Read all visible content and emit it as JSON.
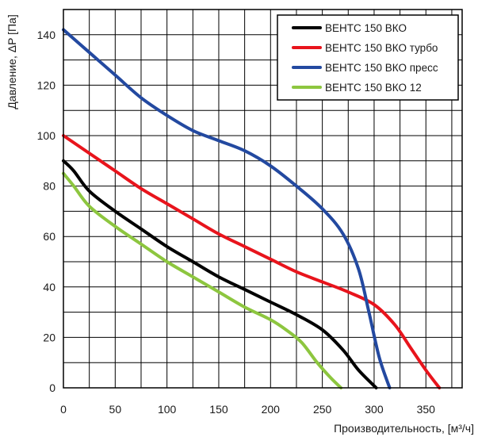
{
  "chart_data": {
    "type": "line",
    "xlabel": "Производительность, [м³/ч]",
    "ylabel": "Давление, ΔP [Па]",
    "xlim": [
      0,
      385
    ],
    "ylim": [
      0,
      150
    ],
    "xticks": [
      0,
      50,
      100,
      150,
      200,
      250,
      300,
      350
    ],
    "yticks": [
      0,
      20,
      40,
      60,
      80,
      100,
      120,
      140
    ],
    "x_grid_step": 25,
    "y_grid_step": 10,
    "grid": true,
    "legend_position": "top-right",
    "series": [
      {
        "name": "ВЕНТС 150 ВКО",
        "color": "#000000",
        "points": [
          [
            0,
            90
          ],
          [
            10,
            86
          ],
          [
            25,
            78
          ],
          [
            50,
            70
          ],
          [
            75,
            63
          ],
          [
            100,
            56
          ],
          [
            125,
            50
          ],
          [
            150,
            44
          ],
          [
            175,
            39
          ],
          [
            200,
            34
          ],
          [
            225,
            29
          ],
          [
            250,
            23
          ],
          [
            270,
            15
          ],
          [
            285,
            7
          ],
          [
            302,
            0
          ]
        ]
      },
      {
        "name": "ВЕНТС 150 ВКО турбо",
        "color": "#e8141c",
        "points": [
          [
            0,
            100
          ],
          [
            25,
            93
          ],
          [
            50,
            86
          ],
          [
            75,
            79
          ],
          [
            100,
            73
          ],
          [
            125,
            67
          ],
          [
            150,
            61
          ],
          [
            175,
            56
          ],
          [
            200,
            51
          ],
          [
            225,
            46
          ],
          [
            250,
            42
          ],
          [
            275,
            38
          ],
          [
            300,
            33
          ],
          [
            320,
            25
          ],
          [
            335,
            16
          ],
          [
            350,
            7
          ],
          [
            363,
            0
          ]
        ]
      },
      {
        "name": "ВЕНТС 150 ВКО пресс",
        "color": "#2349a0",
        "points": [
          [
            0,
            142
          ],
          [
            25,
            133
          ],
          [
            50,
            124
          ],
          [
            75,
            115
          ],
          [
            100,
            108
          ],
          [
            125,
            102
          ],
          [
            150,
            98
          ],
          [
            175,
            94
          ],
          [
            200,
            88
          ],
          [
            225,
            80
          ],
          [
            250,
            71
          ],
          [
            270,
            61
          ],
          [
            285,
            47
          ],
          [
            295,
            30
          ],
          [
            305,
            12
          ],
          [
            315,
            0
          ]
        ]
      },
      {
        "name": "ВЕНТС 150 ВКО 12",
        "color": "#8dc63f",
        "points": [
          [
            0,
            85
          ],
          [
            10,
            80
          ],
          [
            25,
            72
          ],
          [
            50,
            64
          ],
          [
            75,
            57
          ],
          [
            100,
            50
          ],
          [
            125,
            44
          ],
          [
            150,
            38
          ],
          [
            175,
            32
          ],
          [
            200,
            27
          ],
          [
            215,
            23
          ],
          [
            230,
            18
          ],
          [
            245,
            10
          ],
          [
            258,
            4
          ],
          [
            268,
            0
          ]
        ]
      }
    ]
  }
}
